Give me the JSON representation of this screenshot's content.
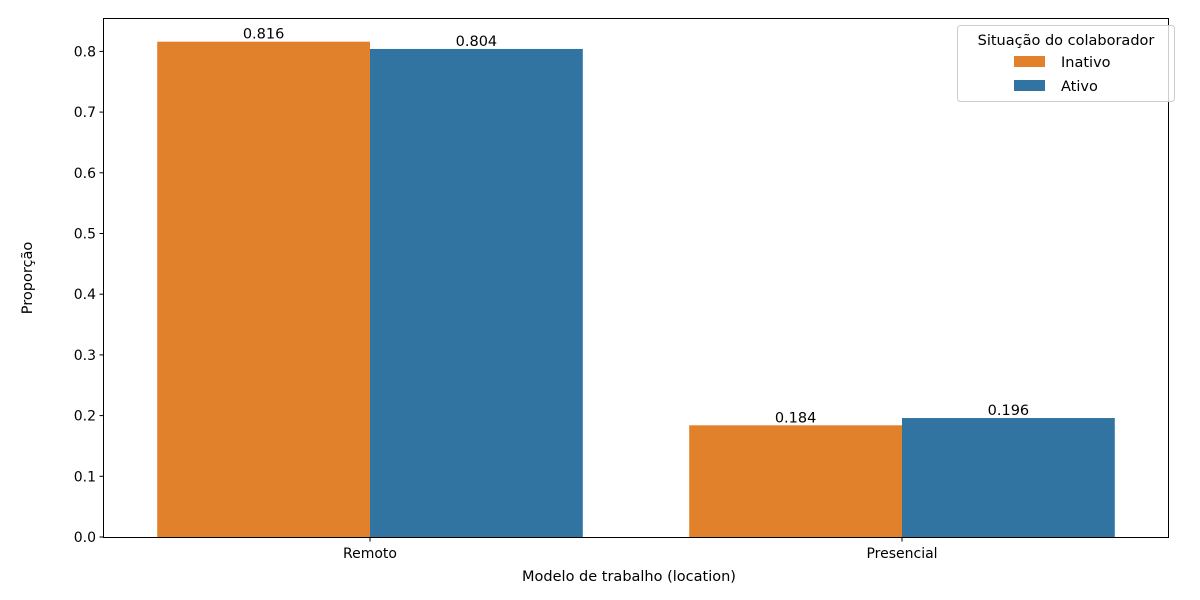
{
  "chart_data": {
    "type": "bar",
    "title": "",
    "xlabel": "Modelo de trabalho (location)",
    "ylabel": "Proporção",
    "categories": [
      "Remoto",
      "Presencial"
    ],
    "ylim": [
      0,
      0.855
    ],
    "yticks": [
      "0.0",
      "0.1",
      "0.2",
      "0.3",
      "0.4",
      "0.5",
      "0.6",
      "0.7",
      "0.8"
    ],
    "grid": false,
    "legend": {
      "title": "Situação do colaborador",
      "placement": "top-right"
    },
    "series": [
      {
        "name": "Inativo",
        "color": "#e1812c",
        "values": [
          0.816,
          0.184
        ],
        "labels": [
          "0.816",
          "0.184"
        ]
      },
      {
        "name": "Ativo",
        "color": "#3274a1",
        "values": [
          0.804,
          0.196
        ],
        "labels": [
          "0.804",
          "0.196"
        ]
      }
    ]
  }
}
